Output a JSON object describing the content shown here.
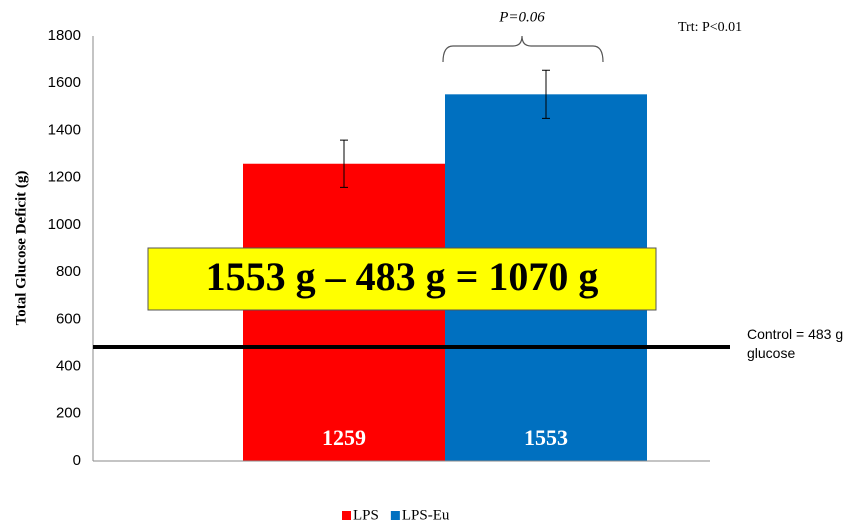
{
  "chart_data": {
    "type": "bar",
    "y_label": "Total Glucose Deficit (g)",
    "categories": [
      null
    ],
    "series": [
      {
        "name": "LPS",
        "color": "#ff0000",
        "values": [
          1259
        ],
        "errors": [
          100
        ]
      },
      {
        "name": "LPS-Eu",
        "color": "#0070c0",
        "values": [
          1553
        ],
        "errors": [
          102
        ]
      }
    ],
    "ylim": [
      0,
      1800
    ],
    "yticks": [
      0,
      200,
      400,
      600,
      800,
      1000,
      1200,
      1400,
      1600,
      1800
    ],
    "grid": false,
    "control_line": {
      "value": 483,
      "label": "Control = 483 g glucose"
    },
    "equation": "1553 g – 483 g = 1070 g",
    "comparison_annotation": "P=0.06",
    "treatment_annotation": "Trt: P<0.01",
    "legend": "bottom"
  }
}
